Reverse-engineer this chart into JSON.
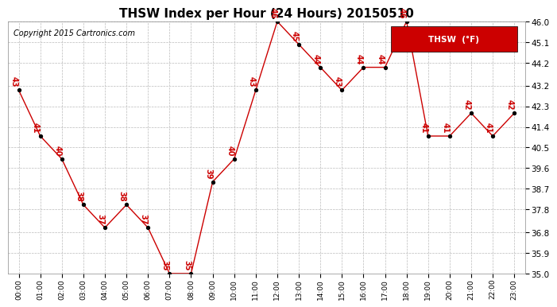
{
  "title": "THSW Index per Hour (24 Hours) 20150510",
  "copyright": "Copyright 2015 Cartronics.com",
  "hours": [
    0,
    1,
    2,
    3,
    4,
    5,
    6,
    7,
    8,
    9,
    10,
    11,
    12,
    13,
    14,
    15,
    16,
    17,
    18,
    19,
    20,
    21,
    22,
    23
  ],
  "values": [
    43,
    41,
    40,
    38,
    37,
    38,
    37,
    35,
    35,
    39,
    40,
    43,
    46,
    45,
    44,
    43,
    44,
    44,
    46,
    41,
    41,
    42,
    41,
    42
  ],
  "ylim_min": 35.0,
  "ylim_max": 46.0,
  "yticks": [
    35.0,
    35.9,
    36.8,
    37.8,
    38.7,
    39.6,
    40.5,
    41.4,
    42.3,
    43.2,
    44.2,
    45.1,
    46.0
  ],
  "line_color": "#cc0000",
  "marker_color": "#000000",
  "label_color": "#cc0000",
  "bg_color": "#ffffff",
  "grid_color": "#bbbbbb",
  "legend_bg": "#cc0000",
  "legend_text": "THSW  (°F)",
  "title_fontsize": 11,
  "copyright_fontsize": 7,
  "label_fontsize": 7
}
